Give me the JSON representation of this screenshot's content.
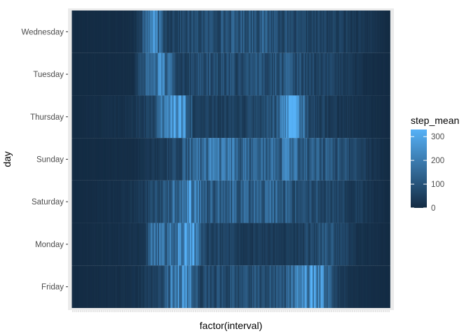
{
  "chart_data": {
    "type": "heatmap",
    "x_label": "factor(interval)",
    "y_label": "day",
    "y_categories_top_to_bottom": [
      "Wednesday",
      "Tuesday",
      "Thursday",
      "Sunday",
      "Saturday",
      "Monday",
      "Friday"
    ],
    "x_interval_count": 288,
    "fill": {
      "name": "step_mean",
      "low_color": "#132B43",
      "high_color": "#56B1F7",
      "range": [
        0,
        330
      ],
      "breaks": [
        0,
        100,
        200,
        300
      ]
    },
    "series": [
      {
        "name": "Wednesday",
        "peaks": [
          [
            0,
            0
          ],
          [
            55,
            8
          ],
          [
            66,
            120
          ],
          [
            72,
            240
          ],
          [
            84,
            60
          ],
          [
            110,
            75
          ],
          [
            150,
            105
          ],
          [
            175,
            115
          ],
          [
            200,
            60
          ],
          [
            230,
            55
          ],
          [
            260,
            35
          ],
          [
            287,
            0
          ]
        ]
      },
      {
        "name": "Tuesday",
        "peaks": [
          [
            0,
            0
          ],
          [
            55,
            8
          ],
          [
            68,
            150
          ],
          [
            80,
            210
          ],
          [
            96,
            55
          ],
          [
            120,
            90
          ],
          [
            155,
            70
          ],
          [
            190,
            115
          ],
          [
            215,
            75
          ],
          [
            245,
            45
          ],
          [
            265,
            10
          ],
          [
            287,
            0
          ]
        ]
      },
      {
        "name": "Thursday",
        "peaks": [
          [
            0,
            0
          ],
          [
            52,
            20
          ],
          [
            70,
            60
          ],
          [
            100,
            330
          ],
          [
            110,
            50
          ],
          [
            150,
            45
          ],
          [
            185,
            100
          ],
          [
            200,
            320
          ],
          [
            215,
            70
          ],
          [
            245,
            30
          ],
          [
            270,
            12
          ],
          [
            287,
            0
          ]
        ]
      },
      {
        "name": "Sunday",
        "peaks": [
          [
            0,
            0
          ],
          [
            55,
            8
          ],
          [
            90,
            55
          ],
          [
            118,
            175
          ],
          [
            145,
            155
          ],
          [
            170,
            130
          ],
          [
            195,
            165
          ],
          [
            215,
            120
          ],
          [
            240,
            100
          ],
          [
            270,
            30
          ],
          [
            287,
            0
          ]
        ]
      },
      {
        "name": "Saturday",
        "peaks": [
          [
            0,
            0
          ],
          [
            50,
            15
          ],
          [
            85,
            95
          ],
          [
            105,
            255
          ],
          [
            122,
            120
          ],
          [
            150,
            125
          ],
          [
            175,
            165
          ],
          [
            200,
            105
          ],
          [
            230,
            70
          ],
          [
            255,
            45
          ],
          [
            275,
            15
          ],
          [
            287,
            0
          ]
        ]
      },
      {
        "name": "Monday",
        "peaks": [
          [
            0,
            0
          ],
          [
            65,
            20
          ],
          [
            72,
            150
          ],
          [
            90,
            160
          ],
          [
            108,
            300
          ],
          [
            120,
            75
          ],
          [
            150,
            40
          ],
          [
            200,
            35
          ],
          [
            230,
            110
          ],
          [
            255,
            25
          ],
          [
            287,
            0
          ]
        ]
      },
      {
        "name": "Friday",
        "peaks": [
          [
            0,
            0
          ],
          [
            55,
            15
          ],
          [
            80,
            60
          ],
          [
            100,
            290
          ],
          [
            115,
            70
          ],
          [
            150,
            80
          ],
          [
            190,
            100
          ],
          [
            218,
            280
          ],
          [
            240,
            40
          ],
          [
            260,
            10
          ],
          [
            287,
            0
          ]
        ]
      }
    ]
  }
}
